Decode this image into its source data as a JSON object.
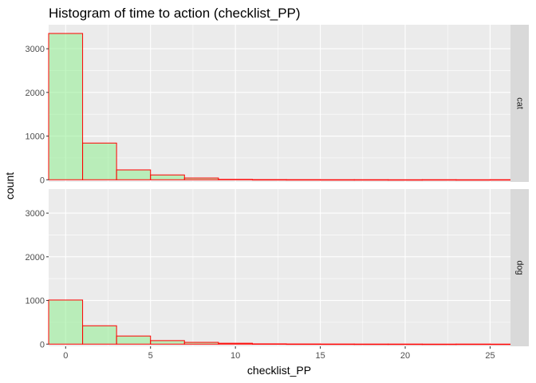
{
  "chart_data": {
    "type": "bar",
    "title": "Histogram of time to action (checklist_PP)",
    "xlabel": "checklist_PP",
    "ylabel": "count",
    "xlim": [
      -1,
      26.2
    ],
    "ylim": [
      -50,
      3550
    ],
    "x_ticks": [
      0,
      5,
      10,
      15,
      20,
      25
    ],
    "y_ticks": [
      0,
      1000,
      2000,
      3000
    ],
    "bin_edges": [
      -1,
      1,
      3,
      5,
      7,
      9,
      11,
      13,
      15,
      17,
      19,
      21,
      23,
      25,
      27
    ],
    "fill_color": "#90EE90",
    "outline_color": "#FF0000",
    "panel_background": "#EBEBEB",
    "grid": true,
    "facets": [
      {
        "label": "cat",
        "values": [
          3350,
          840,
          225,
          110,
          40,
          8,
          3,
          2,
          1,
          1,
          0,
          1,
          0,
          1
        ]
      },
      {
        "label": "dog",
        "values": [
          1010,
          420,
          185,
          80,
          40,
          20,
          6,
          3,
          2,
          1,
          1,
          0,
          1,
          0
        ]
      }
    ]
  }
}
